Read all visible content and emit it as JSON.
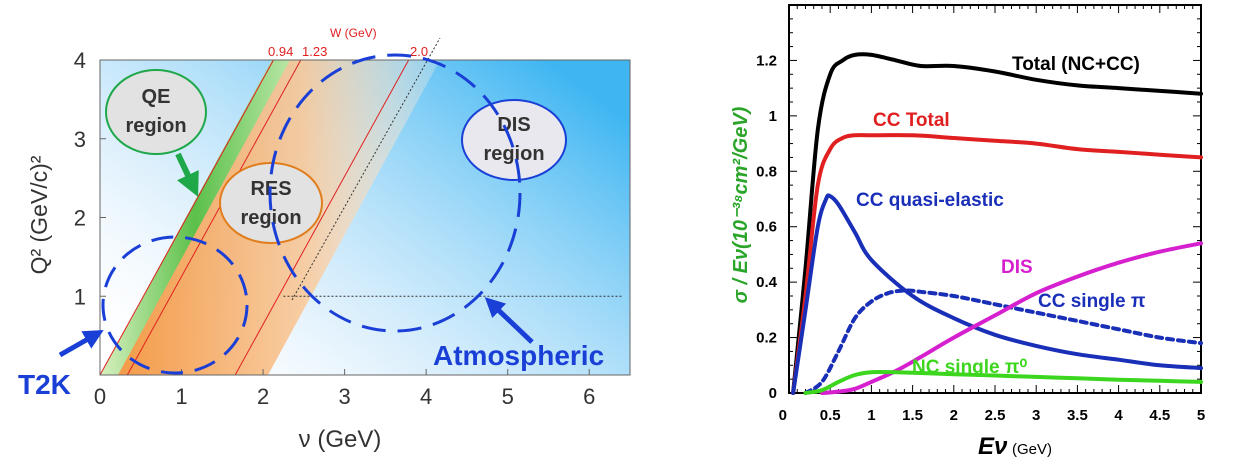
{
  "chart_data": [
    {
      "type": "diagram-plot",
      "xlabel": "ν (GeV)",
      "ylabel": "Q² (GeV/c)²",
      "xlim": [
        0,
        6.5
      ],
      "ylim": [
        0,
        4
      ],
      "xticks": [
        "0",
        "1",
        "2",
        "3",
        "4",
        "5",
        "6"
      ],
      "yticks": [
        "1",
        "2",
        "3",
        "4"
      ],
      "w_axis_title": "W (GeV)",
      "w_lines": [
        {
          "label": "0.94",
          "W": 0.94
        },
        {
          "label": "1.23",
          "W": 1.23
        },
        {
          "label": "2.0",
          "W": 2.0
        }
      ],
      "reference_line": {
        "Q2": 1,
        "x_from": 2.25,
        "x_to": 6.4
      },
      "regions": [
        {
          "label_line1": "QE",
          "label_line2": "region",
          "color": "#1fa84a"
        },
        {
          "label_line1": "RES",
          "label_line2": "region",
          "color": "#e07d1c"
        },
        {
          "label_line1": "DIS",
          "label_line2": "region",
          "color": "#1a3fd6"
        }
      ],
      "experiments": [
        {
          "label": "T2K",
          "center_nu": 1.0,
          "center_Q2": 0.9
        },
        {
          "label": "Atmospheric",
          "center_nu": 3.0,
          "center_Q2": 2.7
        }
      ]
    },
    {
      "type": "line",
      "xlabel": "Eν",
      "xlabel_unit": "(GeV)",
      "ylabel": "σ / Eν(10⁻³⁸cm²/GeV)",
      "xlim": [
        0,
        5
      ],
      "ylim": [
        0,
        1.4
      ],
      "xticks": [
        "0",
        "0.5",
        "1",
        "1.5",
        "2",
        "2.5",
        "3",
        "3.5",
        "4",
        "4.5",
        "5"
      ],
      "yticks": [
        "0",
        "0.2",
        "0.4",
        "0.6",
        "0.8",
        "1",
        "1.2"
      ],
      "series": [
        {
          "name": "Total (NC+CC)",
          "color": "#000000",
          "dash": false,
          "x": [
            0.05,
            0.2,
            0.35,
            0.5,
            0.65,
            0.8,
            1.0,
            1.3,
            1.6,
            2.0,
            2.5,
            3.0,
            3.5,
            4.0,
            4.5,
            5.0
          ],
          "y": [
            0.0,
            0.45,
            0.95,
            1.15,
            1.2,
            1.22,
            1.22,
            1.2,
            1.18,
            1.18,
            1.16,
            1.13,
            1.11,
            1.1,
            1.09,
            1.08
          ]
        },
        {
          "name": "CC Total",
          "color": "#e02020",
          "dash": false,
          "x": [
            0.05,
            0.2,
            0.35,
            0.5,
            0.65,
            0.8,
            1.0,
            1.5,
            2.0,
            2.5,
            3.0,
            3.5,
            4.0,
            4.5,
            5.0
          ],
          "y": [
            0.0,
            0.35,
            0.75,
            0.88,
            0.92,
            0.93,
            0.93,
            0.93,
            0.92,
            0.91,
            0.9,
            0.88,
            0.87,
            0.86,
            0.85
          ]
        },
        {
          "name": "CC quasi-elastic",
          "color": "#1a2fb8",
          "dash": false,
          "x": [
            0.05,
            0.2,
            0.35,
            0.45,
            0.5,
            0.6,
            0.8,
            1.0,
            1.5,
            2.0,
            2.5,
            3.0,
            3.5,
            4.0,
            4.5,
            5.0
          ],
          "y": [
            0.0,
            0.3,
            0.6,
            0.7,
            0.71,
            0.68,
            0.58,
            0.48,
            0.35,
            0.27,
            0.21,
            0.17,
            0.14,
            0.12,
            0.1,
            0.09
          ]
        },
        {
          "name": "CC single π",
          "color": "#1a2fb8",
          "dash": true,
          "x": [
            0.2,
            0.4,
            0.6,
            0.8,
            1.0,
            1.2,
            1.4,
            1.6,
            2.0,
            2.5,
            3.0,
            3.5,
            4.0,
            4.5,
            5.0
          ],
          "y": [
            0.0,
            0.04,
            0.15,
            0.27,
            0.33,
            0.36,
            0.37,
            0.365,
            0.35,
            0.32,
            0.29,
            0.26,
            0.23,
            0.2,
            0.18
          ]
        },
        {
          "name": "DIS",
          "color": "#d61fcf",
          "dash": false,
          "x": [
            0.4,
            0.6,
            0.8,
            1.0,
            1.3,
            1.6,
            2.0,
            2.5,
            3.0,
            3.5,
            4.0,
            4.5,
            5.0
          ],
          "y": [
            0.0,
            0.005,
            0.015,
            0.04,
            0.08,
            0.13,
            0.2,
            0.28,
            0.36,
            0.42,
            0.47,
            0.51,
            0.54
          ]
        },
        {
          "name": "NC single π⁰",
          "color": "#3cd61e",
          "dash": false,
          "x": [
            0.2,
            0.4,
            0.6,
            0.8,
            1.0,
            1.3,
            1.6,
            2.0,
            2.5,
            3.0,
            3.5,
            4.0,
            4.5,
            5.0
          ],
          "y": [
            0.0,
            0.01,
            0.04,
            0.065,
            0.075,
            0.075,
            0.072,
            0.068,
            0.063,
            0.058,
            0.053,
            0.048,
            0.044,
            0.04
          ]
        }
      ]
    }
  ]
}
